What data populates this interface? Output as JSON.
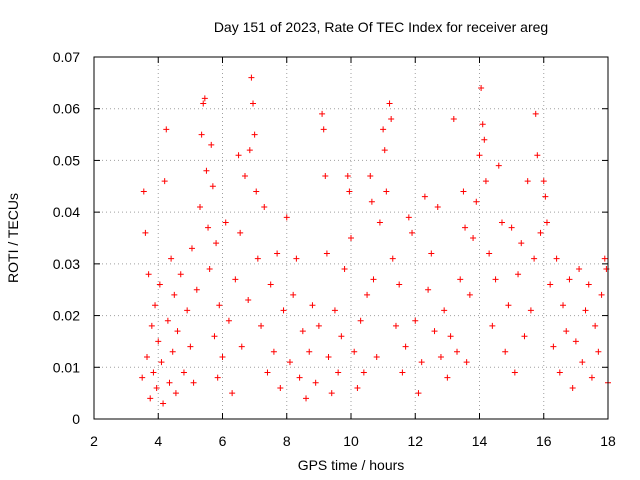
{
  "chart_data": {
    "type": "scatter",
    "title": "Day 151 of 2023, Rate Of TEC Index for receiver areg",
    "xlabel": "GPS time / hours",
    "ylabel": "ROTI / TECUs",
    "xlim": [
      2,
      18
    ],
    "ylim": [
      0,
      0.07
    ],
    "xticks": [
      2,
      4,
      6,
      8,
      10,
      12,
      14,
      16,
      18
    ],
    "yticks": [
      0,
      0.01,
      0.02,
      0.03,
      0.04,
      0.05,
      0.06,
      0.07
    ],
    "xtick_labels": [
      "2",
      "4",
      "6",
      "8",
      "10",
      "12",
      "14",
      "16",
      "18"
    ],
    "ytick_labels": [
      "0",
      "0.01",
      "0.02",
      "0.03",
      "0.04",
      "0.05",
      "0.06",
      "0.07"
    ],
    "grid": true,
    "marker": "plus",
    "color": "#ff0000",
    "series": [
      {
        "points": [
          [
            3.5,
            0.008
          ],
          [
            3.55,
            0.044
          ],
          [
            3.6,
            0.036
          ],
          [
            3.65,
            0.012
          ],
          [
            3.7,
            0.028
          ],
          [
            3.75,
            0.004
          ],
          [
            3.8,
            0.018
          ],
          [
            3.85,
            0.009
          ],
          [
            3.9,
            0.022
          ],
          [
            3.95,
            0.006
          ],
          [
            4.0,
            0.015
          ],
          [
            4.05,
            0.026
          ],
          [
            4.1,
            0.011
          ],
          [
            4.15,
            0.003
          ],
          [
            4.2,
            0.046
          ],
          [
            4.25,
            0.056
          ],
          [
            4.3,
            0.019
          ],
          [
            4.35,
            0.007
          ],
          [
            4.4,
            0.031
          ],
          [
            4.45,
            0.013
          ],
          [
            4.5,
            0.024
          ],
          [
            4.55,
            0.005
          ],
          [
            4.6,
            0.017
          ],
          [
            4.7,
            0.028
          ],
          [
            4.8,
            0.009
          ],
          [
            4.9,
            0.021
          ],
          [
            5.0,
            0.014
          ],
          [
            5.05,
            0.033
          ],
          [
            5.1,
            0.007
          ],
          [
            5.2,
            0.025
          ],
          [
            5.3,
            0.041
          ],
          [
            5.35,
            0.055
          ],
          [
            5.4,
            0.061
          ],
          [
            5.45,
            0.062
          ],
          [
            5.5,
            0.048
          ],
          [
            5.55,
            0.037
          ],
          [
            5.6,
            0.029
          ],
          [
            5.65,
            0.053
          ],
          [
            5.7,
            0.045
          ],
          [
            5.75,
            0.016
          ],
          [
            5.8,
            0.034
          ],
          [
            5.85,
            0.008
          ],
          [
            5.9,
            0.022
          ],
          [
            6.0,
            0.012
          ],
          [
            6.1,
            0.038
          ],
          [
            6.2,
            0.019
          ],
          [
            6.3,
            0.005
          ],
          [
            6.4,
            0.027
          ],
          [
            6.5,
            0.051
          ],
          [
            6.55,
            0.036
          ],
          [
            6.6,
            0.014
          ],
          [
            6.7,
            0.047
          ],
          [
            6.8,
            0.023
          ],
          [
            6.85,
            0.052
          ],
          [
            6.9,
            0.066
          ],
          [
            6.95,
            0.061
          ],
          [
            7.0,
            0.055
          ],
          [
            7.05,
            0.044
          ],
          [
            7.1,
            0.031
          ],
          [
            7.2,
            0.018
          ],
          [
            7.3,
            0.041
          ],
          [
            7.4,
            0.009
          ],
          [
            7.5,
            0.026
          ],
          [
            7.6,
            0.013
          ],
          [
            7.7,
            0.032
          ],
          [
            7.8,
            0.006
          ],
          [
            7.9,
            0.021
          ],
          [
            8.0,
            0.039
          ],
          [
            8.1,
            0.011
          ],
          [
            8.2,
            0.024
          ],
          [
            8.3,
            0.031
          ],
          [
            8.4,
            0.008
          ],
          [
            8.5,
            0.017
          ],
          [
            8.6,
            0.004
          ],
          [
            8.7,
            0.013
          ],
          [
            8.8,
            0.022
          ],
          [
            8.9,
            0.007
          ],
          [
            9.0,
            0.018
          ],
          [
            9.1,
            0.059
          ],
          [
            9.15,
            0.056
          ],
          [
            9.2,
            0.047
          ],
          [
            9.25,
            0.032
          ],
          [
            9.3,
            0.012
          ],
          [
            9.4,
            0.005
          ],
          [
            9.5,
            0.021
          ],
          [
            9.6,
            0.009
          ],
          [
            9.7,
            0.016
          ],
          [
            9.8,
            0.029
          ],
          [
            9.9,
            0.047
          ],
          [
            9.95,
            0.044
          ],
          [
            10.0,
            0.035
          ],
          [
            10.1,
            0.013
          ],
          [
            10.2,
            0.006
          ],
          [
            10.3,
            0.019
          ],
          [
            10.4,
            0.009
          ],
          [
            10.5,
            0.024
          ],
          [
            10.6,
            0.047
          ],
          [
            10.65,
            0.042
          ],
          [
            10.7,
            0.027
          ],
          [
            10.8,
            0.012
          ],
          [
            10.9,
            0.038
          ],
          [
            11.0,
            0.056
          ],
          [
            11.05,
            0.052
          ],
          [
            11.1,
            0.044
          ],
          [
            11.2,
            0.061
          ],
          [
            11.25,
            0.058
          ],
          [
            11.3,
            0.031
          ],
          [
            11.4,
            0.018
          ],
          [
            11.5,
            0.026
          ],
          [
            11.6,
            0.009
          ],
          [
            11.7,
            0.014
          ],
          [
            11.8,
            0.039
          ],
          [
            11.9,
            0.036
          ],
          [
            12.0,
            0.019
          ],
          [
            12.1,
            0.005
          ],
          [
            12.2,
            0.011
          ],
          [
            12.3,
            0.043
          ],
          [
            12.4,
            0.025
          ],
          [
            12.5,
            0.032
          ],
          [
            12.6,
            0.017
          ],
          [
            12.7,
            0.041
          ],
          [
            12.8,
            0.012
          ],
          [
            12.9,
            0.021
          ],
          [
            13.0,
            0.008
          ],
          [
            13.1,
            0.016
          ],
          [
            13.2,
            0.058
          ],
          [
            13.3,
            0.013
          ],
          [
            13.4,
            0.027
          ],
          [
            13.5,
            0.044
          ],
          [
            13.55,
            0.037
          ],
          [
            13.6,
            0.011
          ],
          [
            13.7,
            0.024
          ],
          [
            13.8,
            0.035
          ],
          [
            13.9,
            0.042
          ],
          [
            14.0,
            0.051
          ],
          [
            14.05,
            0.064
          ],
          [
            14.1,
            0.057
          ],
          [
            14.15,
            0.054
          ],
          [
            14.2,
            0.046
          ],
          [
            14.3,
            0.032
          ],
          [
            14.4,
            0.018
          ],
          [
            14.5,
            0.027
          ],
          [
            14.6,
            0.049
          ],
          [
            14.7,
            0.038
          ],
          [
            14.8,
            0.013
          ],
          [
            14.9,
            0.022
          ],
          [
            15.0,
            0.037
          ],
          [
            15.1,
            0.009
          ],
          [
            15.2,
            0.028
          ],
          [
            15.3,
            0.034
          ],
          [
            15.4,
            0.016
          ],
          [
            15.5,
            0.046
          ],
          [
            15.6,
            0.021
          ],
          [
            15.7,
            0.031
          ],
          [
            15.75,
            0.059
          ],
          [
            15.8,
            0.051
          ],
          [
            15.9,
            0.036
          ],
          [
            16.0,
            0.046
          ],
          [
            16.05,
            0.043
          ],
          [
            16.1,
            0.038
          ],
          [
            16.2,
            0.026
          ],
          [
            16.3,
            0.014
          ],
          [
            16.4,
            0.031
          ],
          [
            16.5,
            0.009
          ],
          [
            16.6,
            0.022
          ],
          [
            16.7,
            0.017
          ],
          [
            16.8,
            0.027
          ],
          [
            16.9,
            0.006
          ],
          [
            17.0,
            0.015
          ],
          [
            17.1,
            0.029
          ],
          [
            17.2,
            0.011
          ],
          [
            17.3,
            0.021
          ],
          [
            17.4,
            0.026
          ],
          [
            17.5,
            0.008
          ],
          [
            17.6,
            0.018
          ],
          [
            17.7,
            0.013
          ],
          [
            17.8,
            0.024
          ],
          [
            17.9,
            0.031
          ],
          [
            17.95,
            0.029
          ],
          [
            18.0,
            0.007
          ]
        ]
      }
    ]
  }
}
